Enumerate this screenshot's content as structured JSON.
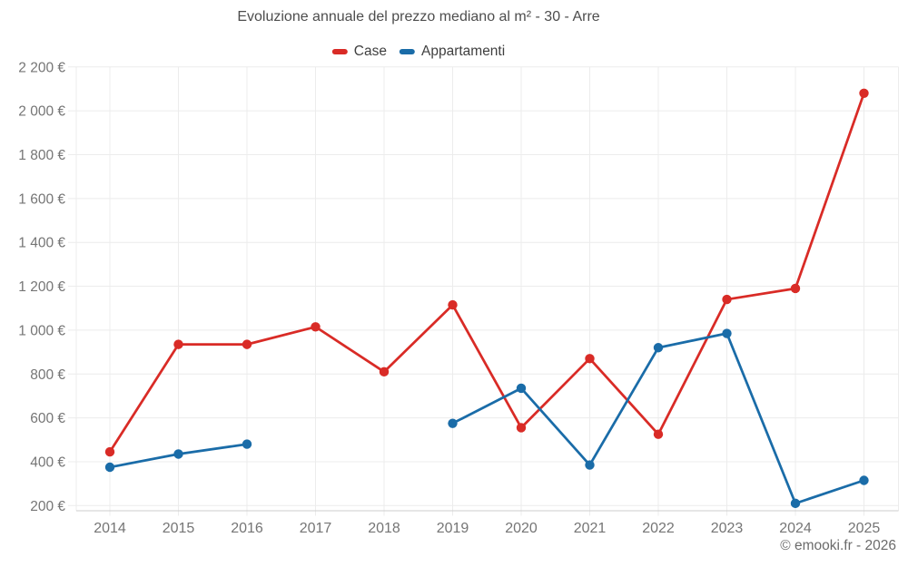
{
  "title": "Evoluzione annuale del prezzo mediano al m² - 30 - Arre",
  "legend": [
    {
      "label": "Case",
      "color": "#d92b26"
    },
    {
      "label": "Appartamenti",
      "color": "#1a6ca8"
    }
  ],
  "attribution": "© emooki.fr - 2026",
  "chart_data": {
    "type": "line",
    "title": "Evoluzione annuale del prezzo mediano al m² - 30 - Arre",
    "x": [
      2014,
      2015,
      2016,
      2017,
      2018,
      2019,
      2020,
      2021,
      2022,
      2023,
      2024,
      2025
    ],
    "series": [
      {
        "name": "Case",
        "color": "#d92b26",
        "values": [
          445,
          935,
          935,
          1015,
          810,
          1115,
          555,
          870,
          525,
          1140,
          1190,
          2080
        ]
      },
      {
        "name": "Appartamenti",
        "color": "#1a6ca8",
        "values": [
          375,
          435,
          480,
          null,
          null,
          575,
          735,
          385,
          920,
          985,
          210,
          315
        ]
      }
    ],
    "xlabel": "",
    "ylabel": "",
    "ylim": [
      200,
      2200
    ],
    "y_ticks": [
      200,
      400,
      600,
      800,
      1000,
      1200,
      1400,
      1600,
      1800,
      2000,
      2200
    ],
    "y_tick_labels": [
      "200 €",
      "400 €",
      "600 €",
      "800 €",
      "1 000 €",
      "1 200 €",
      "1 400 €",
      "1 600 €",
      "1 800 €",
      "2 000 €",
      "2 200 €"
    ],
    "grid": true,
    "legend_position": "top",
    "colors": {
      "grid": "#ececec",
      "axis_line": "#cccccc",
      "tick_label": "#757575"
    }
  }
}
